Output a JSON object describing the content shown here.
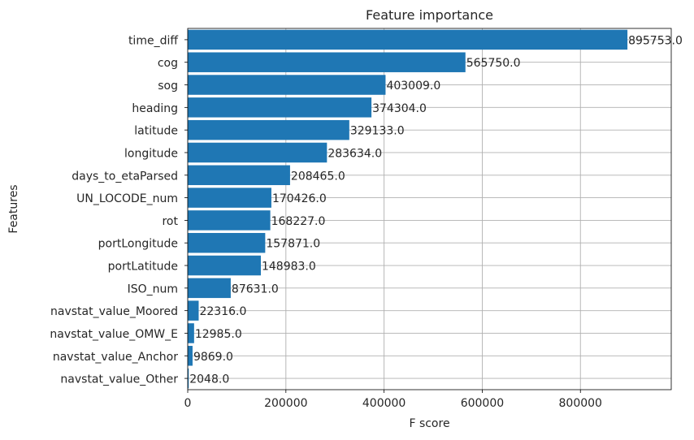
{
  "chart_data": {
    "type": "bar",
    "orientation": "horizontal",
    "title": "Feature importance",
    "xlabel": "F score",
    "ylabel": "Features",
    "xlim": [
      0,
      985000
    ],
    "grid": true,
    "bar_color": "#1f77b4",
    "xticks": [
      0,
      200000,
      400000,
      600000,
      800000
    ],
    "xtick_labels": [
      "0",
      "200000",
      "400000",
      "600000",
      "800000"
    ],
    "categories": [
      "time_diff",
      "cog",
      "sog",
      "heading",
      "latitude",
      "longitude",
      "days_to_etaParsed",
      "UN_LOCODE_num",
      "rot",
      "portLongitude",
      "portLatitude",
      "ISO_num",
      "navstat_value_Moored",
      "navstat_value_OMW_E",
      "navstat_value_Anchor",
      "navstat_value_Other"
    ],
    "values": [
      895753,
      565750,
      403009,
      374304,
      329133,
      283634,
      208465,
      170426,
      168227,
      157871,
      148983,
      87631,
      22316,
      12985,
      9869,
      2048
    ],
    "value_labels": [
      "895753.0",
      "565750.0",
      "403009.0",
      "374304.0",
      "329133.0",
      "283634.0",
      "208465.0",
      "170426.0",
      "168227.0",
      "157871.0",
      "148983.0",
      "87631.0",
      "22316.0",
      "12985.0",
      "9869.0",
      "2048.0"
    ]
  }
}
